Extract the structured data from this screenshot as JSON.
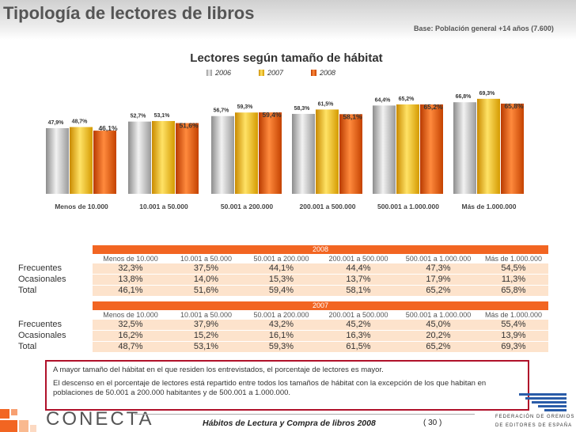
{
  "header": {
    "title": "Tipología de lectores de libros",
    "base_note": "Base: Población general +14 años (7.600)"
  },
  "chart_data": {
    "type": "bar",
    "title": "Lectores según tamaño de hábitat",
    "categories": [
      "Menos de 10.000",
      "10.001 a 50.000",
      "50.001 a 200.000",
      "200.001 a 500.000",
      "500.001 a 1.000.000",
      "Más de 1.000.000"
    ],
    "series": [
      {
        "name": "2006",
        "values": [
          47.9,
          52.7,
          56.7,
          58.3,
          64.4,
          66.8
        ],
        "labels": [
          "47,9%",
          "52,7%",
          "56,7%",
          "58,3%",
          "64,4%",
          "66,8%"
        ],
        "color": "#bfbfbf"
      },
      {
        "name": "2007",
        "values": [
          48.7,
          53.1,
          59.3,
          61.5,
          65.2,
          69.3
        ],
        "labels": [
          "48,7%",
          "53,1%",
          "59,3%",
          "61,5%",
          "65,2%",
          "69,3%"
        ],
        "color": "#f2b600"
      },
      {
        "name": "2008",
        "values": [
          46.1,
          51.6,
          59.4,
          58.1,
          65.2,
          65.8
        ],
        "labels": [
          "46,1%",
          "51,6%",
          "59,4%",
          "58,1%",
          "65,2%",
          "65,8%"
        ],
        "color": "#e8530e"
      }
    ],
    "ylim": [
      0,
      75
    ],
    "grid": false,
    "legend": "top-center"
  },
  "tables": {
    "columns": [
      "Menos de 10.000",
      "10.001 a 50.000",
      "50.001 a 200.000",
      "200.001 a 500.000",
      "500.001 a 1.000.000",
      "Más de 1.000.000"
    ],
    "t2008": {
      "year": "2008",
      "rows": [
        {
          "label": "Frecuentes",
          "values": [
            "32,3%",
            "37,5%",
            "44,1%",
            "44,4%",
            "47,3%",
            "54,5%"
          ]
        },
        {
          "label": "Ocasionales",
          "values": [
            "13,8%",
            "14,0%",
            "15,3%",
            "13,7%",
            "17,9%",
            "11,3%"
          ]
        },
        {
          "label": "Total",
          "values": [
            "46,1%",
            "51,6%",
            "59,4%",
            "58,1%",
            "65,2%",
            "65,8%"
          ]
        }
      ]
    },
    "t2007": {
      "year": "2007",
      "rows": [
        {
          "label": "Frecuentes",
          "values": [
            "32,5%",
            "37,9%",
            "43,2%",
            "45,2%",
            "45,0%",
            "55,4%"
          ]
        },
        {
          "label": "Ocasionales",
          "values": [
            "16,2%",
            "15,2%",
            "16,1%",
            "16,3%",
            "20,2%",
            "13,9%"
          ]
        },
        {
          "label": "Total",
          "values": [
            "48,7%",
            "53,1%",
            "59,3%",
            "61,5%",
            "65,2%",
            "69,3%"
          ]
        }
      ]
    }
  },
  "notes": {
    "p1": "A mayor tamaño del hábitat en el que residen los entrevistados, el porcentaje de lectores es mayor.",
    "p2": "El descenso en el porcentaje de lectores está repartido entre todos los tamaños de hábitat con la excepción de los que habitan en poblaciones de 50.001 a 200.000 habitantes y de 500.001 a 1.000.000."
  },
  "footer": {
    "title": "Hábitos de Lectura y Compra de libros 2008",
    "page": "( 30 )",
    "brand": "CONECTA",
    "fed_line1": "FEDERACIÓN DE GREMIOS",
    "fed_line2": "DE EDITORES DE ESPAÑA"
  }
}
